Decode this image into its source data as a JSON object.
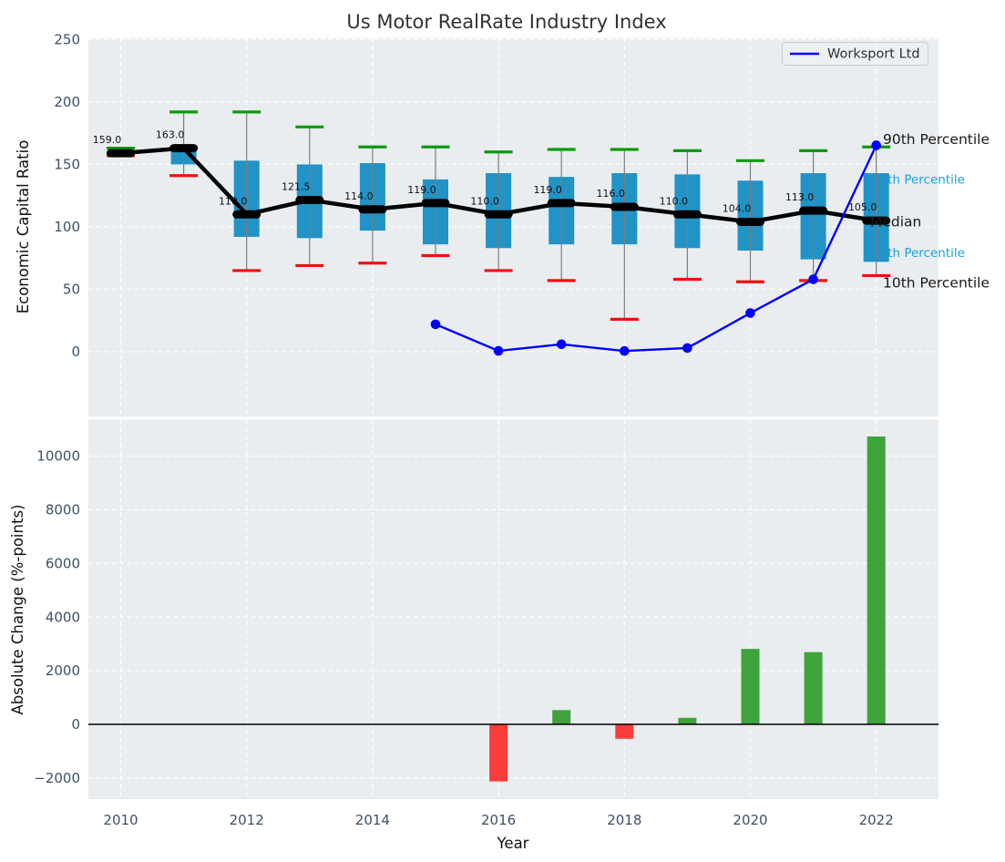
{
  "figure": {
    "title": "Us Motor RealRate Industry Index"
  },
  "colors": {
    "plot_bg": "#e9edf0",
    "grid": "#ffffff",
    "tick_label": "#3e5168",
    "title": "#323232",
    "axis_label": "#111111",
    "box_fill": "#2193c7",
    "whisker": "#7d7d7d",
    "p90_cap": "#0b9b0b",
    "p10_cap": "#ee1111",
    "median": "#000000",
    "line": "#0000ff",
    "bar_positive": "#3fa33c",
    "bar_negative": "#fb3d3d",
    "annotation_cyan": "#1ba3d8",
    "annotation_black": "#1a1a1a",
    "legend_bg": "#edf0f3",
    "legend_border": "#c8ccd4",
    "zero_line": "#000000"
  },
  "chart_data": [
    {
      "type": "box",
      "title": "Us Motor RealRate Industry Index",
      "ylabel": "Economic Capital Ratio",
      "ylim": [
        -52,
        251
      ],
      "yticks": [
        0,
        50,
        100,
        150,
        200,
        250
      ],
      "xticks": [
        2010,
        2012,
        2014,
        2016,
        2018,
        2020,
        2022
      ],
      "grid": true,
      "legend": {
        "label": "Worksport Ltd",
        "position": "upper right"
      },
      "boxes": [
        {
          "year": 2010,
          "p10": 157,
          "p25": 158,
          "median": 159.0,
          "p75": 161,
          "p90": 163,
          "label": "159.0"
        },
        {
          "year": 2011,
          "p10": 141,
          "p25": 150,
          "median": 163.0,
          "p75": 165,
          "p90": 192,
          "label": "163.0"
        },
        {
          "year": 2012,
          "p10": 65,
          "p25": 92,
          "median": 110.0,
          "p75": 153,
          "p90": 192,
          "label": "110.0"
        },
        {
          "year": 2013,
          "p10": 69,
          "p25": 91,
          "median": 121.5,
          "p75": 150,
          "p90": 180,
          "label": "121.5"
        },
        {
          "year": 2014,
          "p10": 71,
          "p25": 97,
          "median": 114.0,
          "p75": 151,
          "p90": 164,
          "label": "114.0"
        },
        {
          "year": 2015,
          "p10": 77,
          "p25": 86,
          "median": 119.0,
          "p75": 138,
          "p90": 164,
          "label": "119.0"
        },
        {
          "year": 2016,
          "p10": 65,
          "p25": 83,
          "median": 110.0,
          "p75": 143,
          "p90": 160,
          "label": "110.0"
        },
        {
          "year": 2017,
          "p10": 57,
          "p25": 86,
          "median": 119.0,
          "p75": 140,
          "p90": 162,
          "label": "119.0"
        },
        {
          "year": 2018,
          "p10": 26,
          "p25": 86,
          "median": 116.0,
          "p75": 143,
          "p90": 162,
          "label": "116.0"
        },
        {
          "year": 2019,
          "p10": 58,
          "p25": 83,
          "median": 110.0,
          "p75": 142,
          "p90": 161,
          "label": "110.0"
        },
        {
          "year": 2020,
          "p10": 56,
          "p25": 81,
          "median": 104.0,
          "p75": 137,
          "p90": 153,
          "label": "104.0"
        },
        {
          "year": 2021,
          "p10": 57,
          "p25": 74,
          "median": 113.0,
          "p75": 143,
          "p90": 161,
          "label": "113.0"
        },
        {
          "year": 2022,
          "p10": 61,
          "p25": 72,
          "median": 105.0,
          "p75": 143,
          "p90": 164,
          "label": "105.0"
        }
      ],
      "series": [
        {
          "name": "Worksport Ltd",
          "x": [
            2015,
            2016,
            2017,
            2018,
            2019,
            2020,
            2021,
            2022
          ],
          "y": [
            22,
            0.7,
            6,
            0.6,
            3,
            31,
            58,
            165.3
          ]
        }
      ],
      "annotations": [
        {
          "text": "90th Percentile",
          "y": 170,
          "style": "black"
        },
        {
          "text": "75th Percentile",
          "y": 138,
          "style": "cyan"
        },
        {
          "text": "Median",
          "y": 104,
          "style": "black"
        },
        {
          "text": "25th Percentile",
          "y": 79,
          "style": "cyan"
        },
        {
          "text": "10th Percentile",
          "y": 55,
          "style": "black"
        }
      ]
    },
    {
      "type": "bar",
      "ylabel": "Absolute Change (%-points)",
      "xlabel": "Year",
      "ylim": [
        -2790,
        11360
      ],
      "yticks": [
        -2000,
        0,
        2000,
        4000,
        6000,
        8000,
        10000
      ],
      "xticks": [
        2010,
        2012,
        2014,
        2016,
        2018,
        2020,
        2022
      ],
      "grid": true,
      "bars": [
        {
          "year": 2016,
          "value": -2130
        },
        {
          "year": 2017,
          "value": 530
        },
        {
          "year": 2018,
          "value": -540
        },
        {
          "year": 2019,
          "value": 240
        },
        {
          "year": 2020,
          "value": 2810
        },
        {
          "year": 2021,
          "value": 2690
        },
        {
          "year": 2022,
          "value": 10730
        }
      ]
    }
  ]
}
